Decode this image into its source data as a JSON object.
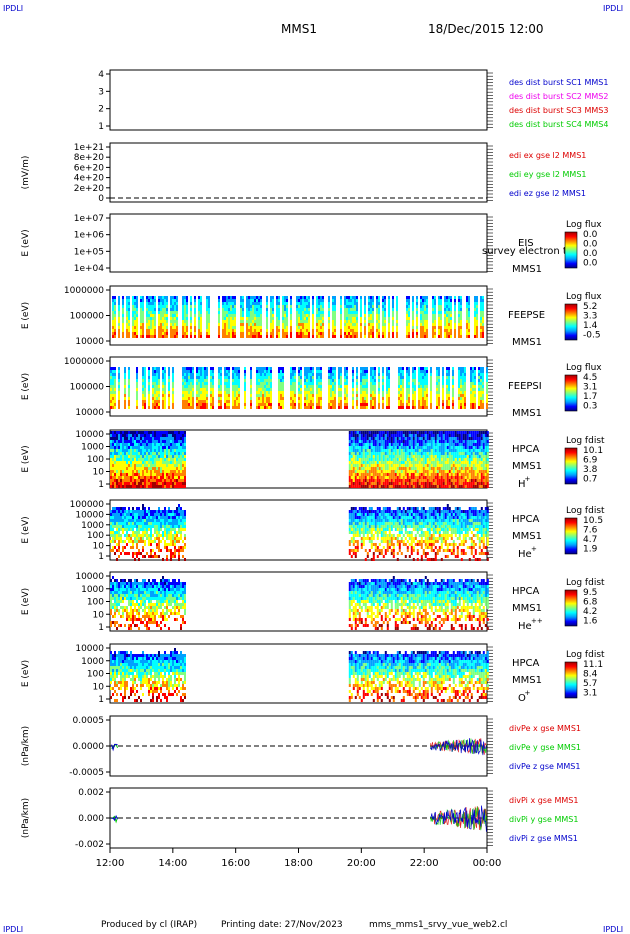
{
  "header": {
    "corner_left": "IPDLI",
    "corner_right": "IPDLI",
    "title": "MMS1",
    "datetime": "18/Dec/2015 12:00"
  },
  "footer": {
    "corner_left": "IPDLI",
    "corner_right": "IPDLI",
    "credit": "Produced by cl (IRAP)",
    "printing_date": "Printing date: 27/Nov/2023",
    "script_name": "mms_mms1_srvy_vue_web2.cl"
  },
  "colors": {
    "blue": "#0000cc",
    "magenta": "#ee00ee",
    "red": "#dd0000",
    "green": "#00cc00",
    "colorbar": [
      "#000080",
      "#0000ff",
      "#00a0ff",
      "#00ffff",
      "#80ff80",
      "#ffff00",
      "#ff8000",
      "#ff0000",
      "#a00000"
    ]
  },
  "chart_data": [
    {
      "type": "line",
      "panel": "burst",
      "yticks": [
        "4",
        "3",
        "2",
        "1"
      ],
      "ylim": [
        0.5,
        4.5
      ],
      "ylabel": "",
      "legend": [
        {
          "text": "des dist burst SC1 MMS1",
          "color": "#0000cc"
        },
        {
          "text": "des dist burst SC2 MMS2",
          "color": "#ee00ee"
        },
        {
          "text": "des dist burst SC3 MMS3",
          "color": "#dd0000"
        },
        {
          "text": "des dist burst SC4 MMS4",
          "color": "#00cc00"
        }
      ]
    },
    {
      "type": "line",
      "panel": "edi",
      "yticks": [
        "1e+21",
        "8e+20",
        "6e+20",
        "4e+20",
        "2e+20",
        "0"
      ],
      "ylim": [
        0,
        1.1e+21
      ],
      "ylabel": "(mV/m)",
      "legend": [
        {
          "text": "edi ex gse l2 MMS1",
          "color": "#dd0000"
        },
        {
          "text": "edi ey gse l2 MMS1",
          "color": "#00cc00"
        },
        {
          "text": "edi ez gse l2 MMS1",
          "color": "#0000cc"
        }
      ]
    },
    {
      "type": "heatmap",
      "panel": "eis",
      "yticks": [
        "1e+07",
        "1e+06",
        "1e+05",
        "1e+04"
      ],
      "ylabel": "E (eV)",
      "yscale": "log",
      "label_lines": [
        "EIS",
        "MMS1"
      ],
      "overlay_text": "survey electron tof",
      "colorbar_title": "Log flux",
      "colorbar_ticks": [
        "0.0",
        "0.0",
        "0.0",
        "0.0"
      ],
      "coverage": []
    },
    {
      "type": "heatmap",
      "panel": "feepse",
      "yticks": [
        "1000000",
        "100000",
        "10000"
      ],
      "ylabel": "E (eV)",
      "yscale": "log",
      "label_lines": [
        "FEEPSE",
        "MMS1"
      ],
      "colorbar_title": "Log flux",
      "colorbar_ticks": [
        "5.2",
        "3.3",
        "1.4",
        "-0.5"
      ],
      "coverage": [
        [
          12.0,
          24.0
        ]
      ]
    },
    {
      "type": "heatmap",
      "panel": "feepsi",
      "yticks": [
        "1000000",
        "100000",
        "10000"
      ],
      "ylabel": "E (eV)",
      "yscale": "log",
      "label_lines": [
        "FEEPSI",
        "MMS1"
      ],
      "colorbar_title": "Log flux",
      "colorbar_ticks": [
        "4.5",
        "3.1",
        "1.7",
        "0.3"
      ],
      "coverage": [
        [
          12.0,
          24.0
        ]
      ]
    },
    {
      "type": "heatmap",
      "panel": "hpca_h",
      "yticks": [
        "10000",
        "1000",
        "100",
        "10",
        "1"
      ],
      "ylabel": "E (eV)",
      "yscale": "log",
      "label_lines": [
        "HPCA",
        "MMS1",
        "H",
        "+"
      ],
      "colorbar_title": "Log fdist",
      "colorbar_ticks": [
        "10.1",
        "6.9",
        "3.8",
        "0.7"
      ],
      "coverage": [
        [
          12.0,
          14.4
        ],
        [
          19.6,
          24.0
        ]
      ]
    },
    {
      "type": "heatmap",
      "panel": "hpca_he",
      "yticks": [
        "100000",
        "10000",
        "1000",
        "100",
        "10",
        "1"
      ],
      "ylabel": "E (eV)",
      "yscale": "log",
      "label_lines": [
        "HPCA",
        "MMS1",
        "He",
        "+"
      ],
      "colorbar_title": "Log fdist",
      "colorbar_ticks": [
        "10.5",
        "7.6",
        "4.7",
        "1.9"
      ],
      "coverage": [
        [
          12.0,
          14.4
        ],
        [
          19.6,
          24.0
        ]
      ]
    },
    {
      "type": "heatmap",
      "panel": "hpca_hepp",
      "yticks": [
        "10000",
        "1000",
        "100",
        "10",
        "1"
      ],
      "ylabel": "E (eV)",
      "yscale": "log",
      "label_lines": [
        "HPCA",
        "MMS1",
        "He",
        "++"
      ],
      "colorbar_title": "Log fdist",
      "colorbar_ticks": [
        "9.5",
        "6.8",
        "4.2",
        "1.6"
      ],
      "coverage": [
        [
          12.0,
          14.4
        ],
        [
          19.6,
          24.0
        ]
      ]
    },
    {
      "type": "heatmap",
      "panel": "hpca_o",
      "yticks": [
        "10000",
        "1000",
        "100",
        "10",
        "1"
      ],
      "ylabel": "E (eV)",
      "yscale": "log",
      "label_lines": [
        "HPCA",
        "MMS1",
        "O",
        "+"
      ],
      "colorbar_title": "Log fdist",
      "colorbar_ticks": [
        "11.1",
        "8.4",
        "5.7",
        "3.1"
      ],
      "coverage": [
        [
          12.0,
          14.4
        ],
        [
          19.6,
          24.0
        ]
      ]
    },
    {
      "type": "line",
      "panel": "divpe",
      "yticks": [
        "0.0005",
        "0.0000",
        "-0.0005"
      ],
      "ylim": [
        -0.0008,
        0.0008
      ],
      "ylabel": "(nPa/km)",
      "legend": [
        {
          "text": "divPe x gse MMS1",
          "color": "#dd0000"
        },
        {
          "text": "divPe y gse MMS1",
          "color": "#00cc00"
        },
        {
          "text": "divPe z gse MMS1",
          "color": "#0000cc"
        }
      ]
    },
    {
      "type": "line",
      "panel": "divpi",
      "yticks": [
        "0.002",
        "0.000",
        "-0.002"
      ],
      "ylim": [
        -0.003,
        0.003
      ],
      "ylabel": "(nPa/km)",
      "legend": [
        {
          "text": "divPi x gse MMS1",
          "color": "#dd0000"
        },
        {
          "text": "divPi y gse MMS1",
          "color": "#00cc00"
        },
        {
          "text": "divPi z gse MMS1",
          "color": "#0000cc"
        }
      ]
    }
  ],
  "xaxis": {
    "ticks": [
      "12:00",
      "14:00",
      "16:00",
      "18:00",
      "20:00",
      "22:00",
      "00:00"
    ],
    "range_hours": [
      12,
      24
    ]
  }
}
